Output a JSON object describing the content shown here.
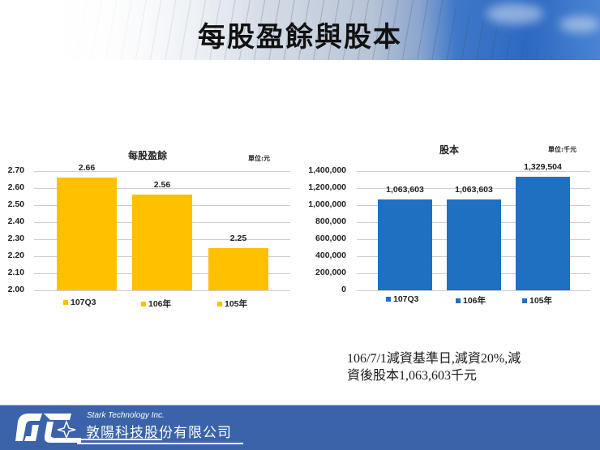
{
  "header": {
    "title": "每股盈餘與股本"
  },
  "eps_chart": {
    "title": "每股盈餘",
    "unit": "單位:元",
    "y_ticks": [
      "2.70",
      "2.60",
      "2.50",
      "2.40",
      "2.30",
      "2.20",
      "2.10",
      "2.00"
    ],
    "bar_color": "#ffc000",
    "bars": [
      {
        "category": "107Q3",
        "value": 2.66,
        "label": "2.66"
      },
      {
        "category": "106年",
        "value": 2.56,
        "label": "2.56"
      },
      {
        "category": "105年",
        "value": 2.25,
        "label": "2.25"
      }
    ],
    "legend": [
      "107Q3",
      "106年",
      "105年"
    ]
  },
  "capital_chart": {
    "title": "股本",
    "unit": "單位:千元",
    "y_ticks": [
      "1,400,000",
      "1,200,000",
      "1,000,000",
      "800,000",
      "600,000",
      "400,000",
      "200,000",
      "0"
    ],
    "bar_color": "#1f70c1",
    "bars": [
      {
        "category": "107Q3",
        "value": 1063603,
        "label": "1,063,603"
      },
      {
        "category": "106年",
        "value": 1063603,
        "label": "1,063,603"
      },
      {
        "category": "105年",
        "value": 1329504,
        "label": "1,329,504"
      }
    ],
    "legend": [
      "107Q3",
      "106年",
      "105年"
    ]
  },
  "note": {
    "line1": "106/7/1減資基準日,減資20%,減",
    "line2": "資後股本1,063,603千元"
  },
  "footer": {
    "company_en": "Stark Technology Inc.",
    "company_zh": "敦陽科技股份有限公司",
    "background": "#3a63aa"
  },
  "chart_data": [
    {
      "type": "bar",
      "title": "每股盈餘",
      "subtitle": "單位:元",
      "categories": [
        "107Q3",
        "106年",
        "105年"
      ],
      "values": [
        2.66,
        2.56,
        2.25
      ],
      "xlabel": "",
      "ylabel": "",
      "ylim": [
        2.0,
        2.7
      ],
      "y_ticks": [
        2.0,
        2.1,
        2.2,
        2.3,
        2.4,
        2.5,
        2.6,
        2.7
      ],
      "grid": true,
      "legend_position": "bottom",
      "color": "#ffc000",
      "data_labels": true
    },
    {
      "type": "bar",
      "title": "股本",
      "subtitle": "單位:千元",
      "categories": [
        "107Q3",
        "106年",
        "105年"
      ],
      "values": [
        1063603,
        1063603,
        1329504
      ],
      "xlabel": "",
      "ylabel": "",
      "ylim": [
        0,
        1400000
      ],
      "y_ticks": [
        0,
        200000,
        400000,
        600000,
        800000,
        1000000,
        1200000,
        1400000
      ],
      "grid": true,
      "legend_position": "bottom",
      "color": "#1f70c1",
      "data_labels": true
    }
  ]
}
